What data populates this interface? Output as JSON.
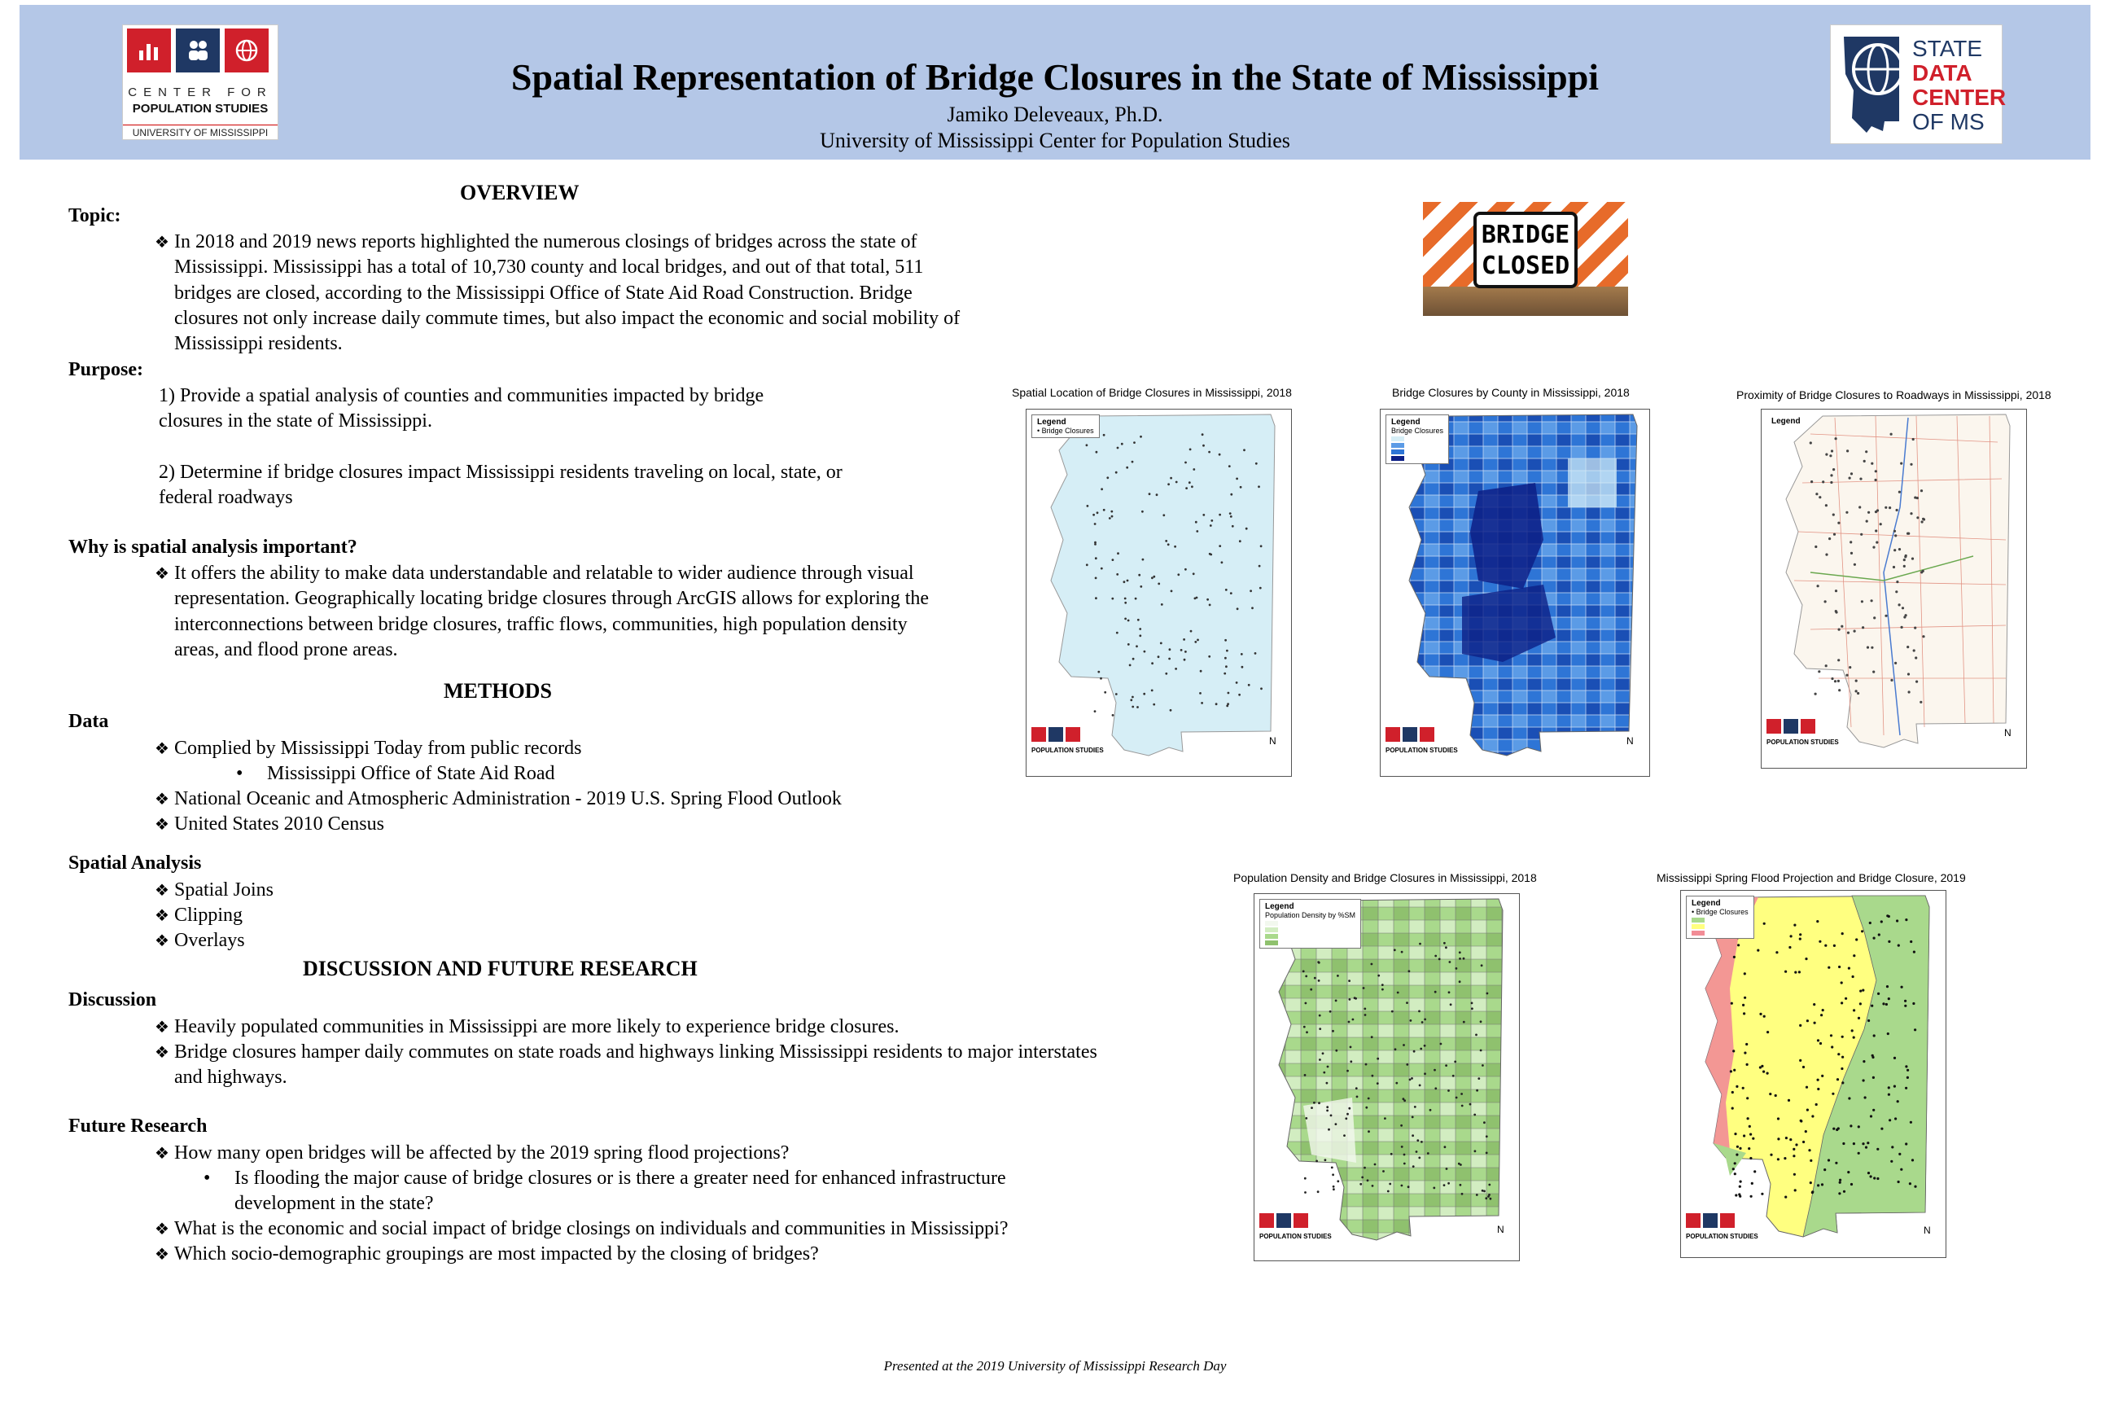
{
  "header": {
    "title": "Spatial Representation of Bridge Closures in the State of Mississippi",
    "author": "Jamiko Deleveaux, Ph.D.",
    "affiliation": "University of Mississippi Center for Population Studies",
    "cps_logo": {
      "line1": "CENTER FOR",
      "line2": "POPULATION STUDIES",
      "line3": "UNIVERSITY OF MISSISSIPPI"
    },
    "sdc_logo": {
      "line1": "STATE",
      "line2": "DATA",
      "line3": "CENTER",
      "line4": "OF MS"
    }
  },
  "overview": {
    "heading": "OVERVIEW",
    "topic_label": "Topic:",
    "topic_text": "In 2018 and 2019 news reports highlighted the numerous closings of bridges across the state of Mississippi. Mississippi has a total of 10,730 county and local bridges, and out of that total, 511 bridges are closed, according to the Mississippi Office of State Aid Road Construction. Bridge closures not only increase daily commute times, but also impact the economic and social mobility of Mississippi residents.",
    "purpose_label": "Purpose:",
    "purpose_1": "1) Provide a spatial analysis of counties and communities impacted by bridge closures in the state of Mississippi.",
    "purpose_2": "2) Determine if bridge closures impact Mississippi residents traveling on local, state, or federal roadways",
    "why_label": "Why is spatial analysis important?",
    "why_text": "It offers the ability to make data understandable and relatable to wider audience through visual representation. Geographically locating bridge closures through ArcGIS allows for exploring the interconnections between bridge closures, traffic flows, communities, high population density areas, and flood prone areas."
  },
  "methods": {
    "heading": "METHODS",
    "data_label": "Data",
    "data_1": "Complied by Mississippi Today from public records",
    "data_1a": "Mississippi Office of State Aid Road",
    "data_2": "National Oceanic and Atmospheric Administration - 2019 U.S. Spring Flood Outlook",
    "data_3": "United States 2010 Census",
    "spatial_label": "Spatial Analysis",
    "spatial_1": "Spatial Joins",
    "spatial_2": "Clipping",
    "spatial_3": "Overlays"
  },
  "discussion": {
    "heading": "DISCUSSION AND FUTURE RESEARCH",
    "discussion_label": "Discussion",
    "disc_1": "Heavily populated communities in Mississippi are more likely to experience bridge closures.",
    "disc_2": "Bridge closures hamper daily commutes on state roads and highways linking Mississippi residents to major interstates and highways.",
    "future_label": "Future Research",
    "fut_1": "How many open bridges will be affected by the 2019 spring flood projections?",
    "fut_1a": "Is flooding the major cause of bridge closures or is there a greater need for enhanced infrastructure development in the state?",
    "fut_2": "What is the economic and social impact of bridge closings on individuals and communities in Mississippi?",
    "fut_3": "Which socio-demographic groupings are most impacted by the closing of bridges?"
  },
  "sign": {
    "line1": "BRIDGE",
    "line2": "CLOSED"
  },
  "maps": [
    {
      "title": "Spatial Location of Bridge Closures in Mississippi, 2018",
      "legend_title": "Legend",
      "legend_item": "Bridge Closures"
    },
    {
      "title": "Bridge Closures by County in Mississippi, 2018",
      "legend_title": "Legend",
      "legend_item": "Bridge Closures"
    },
    {
      "title": "Proximity of Bridge Closures to Roadways in Mississippi, 2018",
      "legend_title": "Legend",
      "legend_item": ""
    },
    {
      "title": "Population Density and Bridge Closures in Mississippi, 2018",
      "legend_title": "Legend",
      "legend_item": "Population Density by %SM"
    },
    {
      "title": "Mississippi Spring Flood Projection and Bridge Closure, 2019",
      "legend_title": "Legend",
      "legend_item": "Bridge Closures"
    }
  ],
  "map_logo_text": "POPULATION STUDIES",
  "north_label": "N",
  "footer": "Presented at the 2019 University of Mississippi Research Day"
}
